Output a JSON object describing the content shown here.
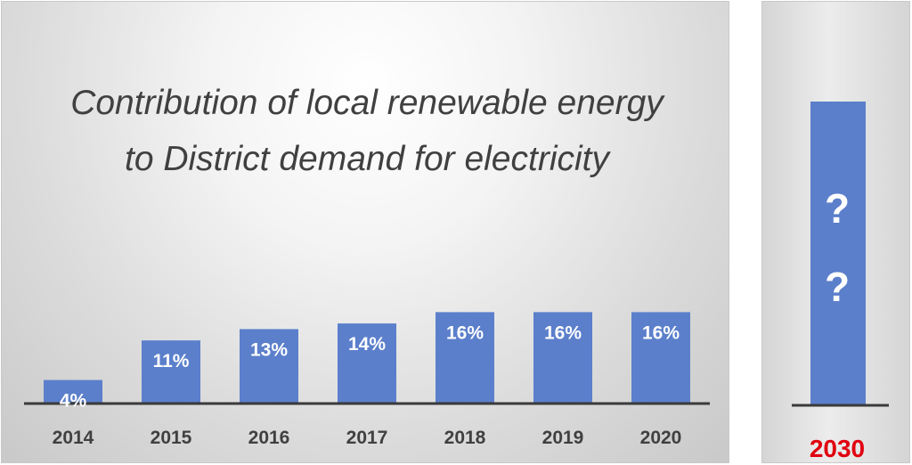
{
  "chart_data": {
    "type": "bar",
    "title": "Contribution of local renewable energy to District demand for electricity",
    "categories": [
      "2014",
      "2015",
      "2016",
      "2017",
      "2018",
      "2019",
      "2020"
    ],
    "values": [
      4,
      11,
      13,
      14,
      16,
      16,
      16
    ],
    "data_labels": [
      "4%",
      "11%",
      "13%",
      "14%",
      "16%",
      "16%",
      "16%"
    ],
    "unit": "%",
    "ylim": [
      0,
      50
    ],
    "grid": false,
    "bar_color": "#5b7fcb",
    "projection": {
      "category": "2030",
      "label": "?\n?",
      "category_color": "#e0000f"
    }
  }
}
